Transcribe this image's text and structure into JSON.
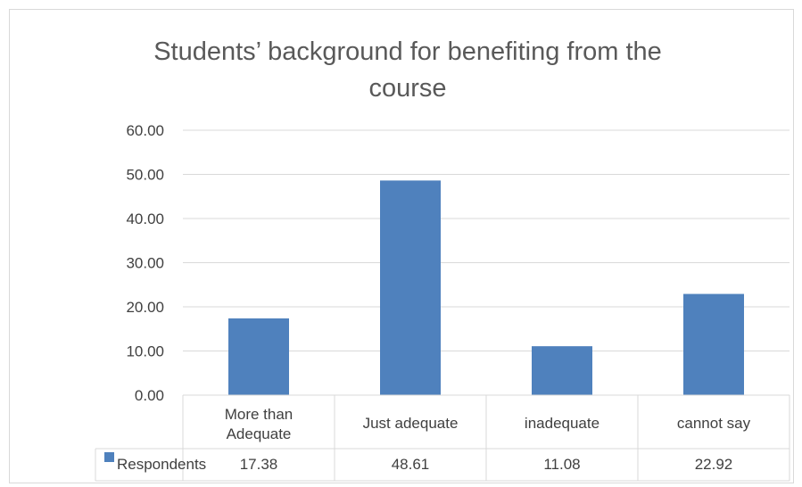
{
  "chart_data": {
    "type": "bar",
    "title_lines": [
      "Students’ background for benefiting from the",
      "course"
    ],
    "categories": [
      {
        "lines": [
          "More than",
          "Adequate"
        ]
      },
      {
        "lines": [
          "Just adequate"
        ]
      },
      {
        "lines": [
          "inadequate"
        ]
      },
      {
        "lines": [
          "cannot say"
        ]
      }
    ],
    "series": [
      {
        "name": "Respondents",
        "values": [
          17.38,
          48.61,
          11.08,
          22.92
        ],
        "value_labels": [
          "17.38",
          "48.61",
          "11.08",
          "22.92"
        ]
      }
    ],
    "yticks": [
      "0.00",
      "10.00",
      "20.00",
      "30.00",
      "40.00",
      "50.00",
      "60.00"
    ],
    "ylim": [
      0,
      60
    ],
    "grid": true,
    "legend": "data-table",
    "colors": {
      "bar": "#4f81bd",
      "grid": "#d9d9d9",
      "text": "#404040",
      "title": "#595959"
    }
  }
}
